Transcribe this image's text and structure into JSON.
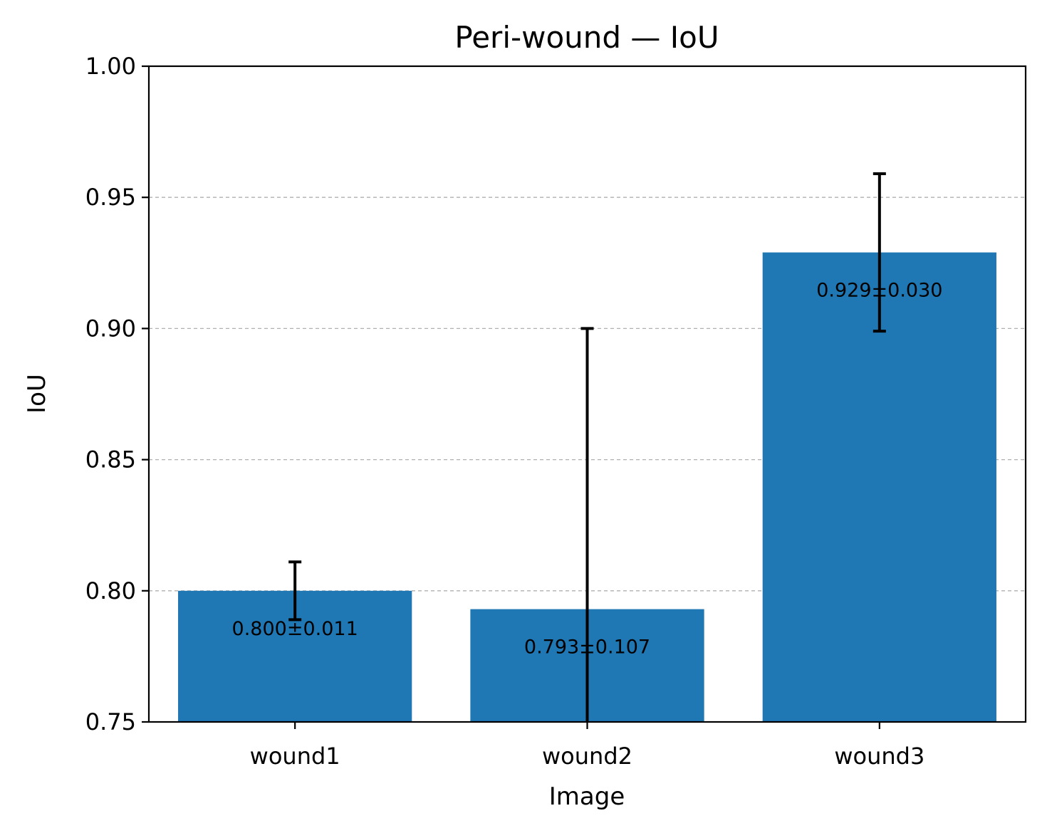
{
  "chart_data": {
    "type": "bar",
    "title": "Peri-wound — IoU",
    "xlabel": "Image",
    "ylabel": "IoU",
    "categories": [
      "wound1",
      "wound2",
      "wound3"
    ],
    "values": [
      0.8,
      0.793,
      0.929
    ],
    "errors": [
      0.011,
      0.107,
      0.03
    ],
    "data_labels": [
      "0.800±0.011",
      "0.793±0.107",
      "0.929±0.030"
    ],
    "ylim": [
      0.75,
      1.0
    ],
    "yticks": [
      0.75,
      0.8,
      0.85,
      0.9,
      0.95,
      1.0
    ],
    "ytick_labels": [
      "0.75",
      "0.80",
      "0.85",
      "0.90",
      "0.95",
      "1.00"
    ],
    "grid": "y-dashed",
    "bar_color": "#1f77b4"
  }
}
